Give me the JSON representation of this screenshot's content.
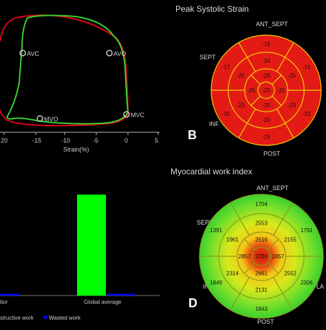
{
  "panel_a": {
    "point_labels": {
      "avc": "AVC",
      "avo": "AVO",
      "mvo": "MVO",
      "mvc": "MVC"
    },
    "xlabel": "Strain(%)",
    "xticks": [
      "20",
      "-15",
      "-10",
      "-5",
      "0",
      "5"
    ]
  },
  "panel_b": {
    "title": "Peak Systolic Strain",
    "label": "B",
    "segments": {
      "ant_sept": "ANT_SEPT",
      "sept": "SEPT",
      "inf": "INF",
      "post": "POST"
    },
    "outer": [
      "-18",
      "-15",
      "-23",
      "-19",
      "-20",
      "-17"
    ],
    "mid": [
      "-24",
      "-25",
      "-23",
      "-20",
      "-23",
      "-25"
    ],
    "apical": [
      "-26",
      "-25",
      "-25",
      "-25"
    ],
    "apex": "-25",
    "colors": {
      "fill": "#e31b14",
      "line": "#f4d000"
    }
  },
  "panel_c": {
    "categories": [
      "tior",
      "Global average"
    ],
    "legend_constructive": "structive work",
    "legend_wasted": "Wasted work",
    "colors": {
      "constructive": "#00ff00",
      "wasted": "#0000ff"
    },
    "chart_data": {
      "type": "bar",
      "categories": [
        "tior",
        "Global average"
      ],
      "series": [
        {
          "name": "structive work",
          "values": [
            null,
            2300
          ]
        },
        {
          "name": "Wasted work",
          "values": [
            40,
            40
          ]
        }
      ],
      "ylim": [
        0,
        2700
      ]
    }
  },
  "panel_d": {
    "title": "Myocardial work index",
    "label": "D",
    "segments": {
      "ant_sept": "ANT_SEPT",
      "sept": "SEPT",
      "inf": "INF",
      "post": "POST",
      "lat": "LA"
    },
    "outer": [
      "1704",
      "1791",
      "2306",
      "1843",
      "1849",
      "1391"
    ],
    "mid": [
      "2553",
      "2155",
      "2552",
      "2131",
      "2314",
      "1961"
    ],
    "apical": [
      "2516",
      "2857",
      "2661",
      "2857"
    ],
    "apex": "2724"
  }
}
